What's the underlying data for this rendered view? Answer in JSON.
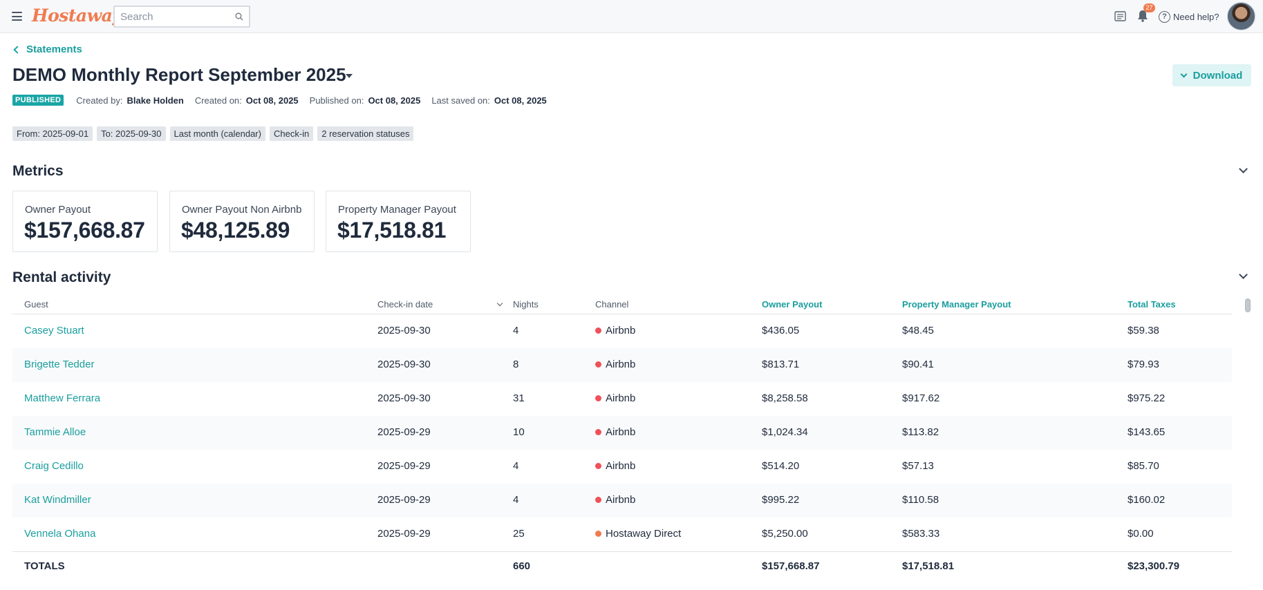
{
  "app": {
    "logo_text": "Hostaway",
    "search_placeholder": "Search",
    "notification_count": "27",
    "help_label": "Need help?"
  },
  "header": {
    "breadcrumb": "Statements",
    "title": "DEMO Monthly Report September 2025",
    "download_label": "Download",
    "status_badge": "PUBLISHED",
    "created_by_label": "Created by:",
    "created_by": "Blake Holden",
    "created_on_label": "Created on:",
    "created_on": "Oct 08, 2025",
    "published_on_label": "Published on:",
    "published_on": "Oct 08, 2025",
    "last_saved_label": "Last saved on:",
    "last_saved": "Oct 08, 2025"
  },
  "filters": [
    "From: 2025-09-01",
    "To: 2025-09-30",
    "Last month (calendar)",
    "Check-in",
    "2 reservation statuses"
  ],
  "metrics": {
    "title": "Metrics",
    "cards": [
      {
        "label": "Owner Payout",
        "value": "$157,668.87"
      },
      {
        "label": "Owner Payout Non Airbnb",
        "value": "$48,125.89"
      },
      {
        "label": "Property Manager Payout",
        "value": "$17,518.81"
      }
    ]
  },
  "rental_activity": {
    "title": "Rental activity",
    "columns": {
      "guest": "Guest",
      "checkin": "Check-in date",
      "nights": "Nights",
      "channel": "Channel",
      "owner_payout": "Owner Payout",
      "pm_payout": "Property Manager Payout",
      "total_taxes": "Total Taxes"
    },
    "rows": [
      {
        "guest": "Casey Stuart",
        "checkin": "2025-09-30",
        "nights": "4",
        "channel": "Airbnb",
        "channel_color": "#f0505a",
        "owner_payout": "$436.05",
        "pm_payout": "$48.45",
        "total_taxes": "$59.38"
      },
      {
        "guest": "Brigette Tedder",
        "checkin": "2025-09-30",
        "nights": "8",
        "channel": "Airbnb",
        "channel_color": "#f0505a",
        "owner_payout": "$813.71",
        "pm_payout": "$90.41",
        "total_taxes": "$79.93"
      },
      {
        "guest": "Matthew Ferrara",
        "checkin": "2025-09-30",
        "nights": "31",
        "channel": "Airbnb",
        "channel_color": "#f0505a",
        "owner_payout": "$8,258.58",
        "pm_payout": "$917.62",
        "total_taxes": "$975.22"
      },
      {
        "guest": "Tammie Alloe",
        "checkin": "2025-09-29",
        "nights": "10",
        "channel": "Airbnb",
        "channel_color": "#f0505a",
        "owner_payout": "$1,024.34",
        "pm_payout": "$113.82",
        "total_taxes": "$143.65"
      },
      {
        "guest": "Craig Cedillo",
        "checkin": "2025-09-29",
        "nights": "4",
        "channel": "Airbnb",
        "channel_color": "#f0505a",
        "owner_payout": "$514.20",
        "pm_payout": "$57.13",
        "total_taxes": "$85.70"
      },
      {
        "guest": "Kat Windmiller",
        "checkin": "2025-09-29",
        "nights": "4",
        "channel": "Airbnb",
        "channel_color": "#f0505a",
        "owner_payout": "$995.22",
        "pm_payout": "$110.58",
        "total_taxes": "$160.02"
      },
      {
        "guest": "Vennela Ohana",
        "checkin": "2025-09-29",
        "nights": "25",
        "channel": "Hostaway Direct",
        "channel_color": "#f07b4f",
        "owner_payout": "$5,250.00",
        "pm_payout": "$583.33",
        "total_taxes": "$0.00"
      }
    ],
    "totals": {
      "label": "TOTALS",
      "nights": "660",
      "owner_payout": "$157,668.87",
      "pm_payout": "$17,518.81",
      "total_taxes": "$23,300.79"
    }
  },
  "colors": {
    "accent": "#1a9e9e",
    "brand": "#f07b4f"
  }
}
